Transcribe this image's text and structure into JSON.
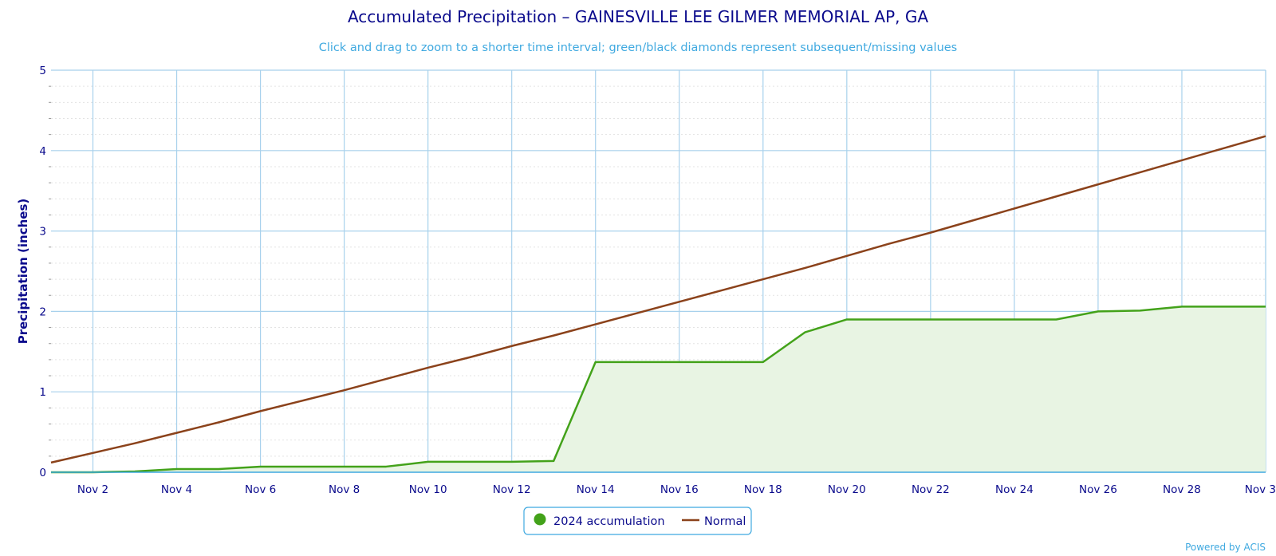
{
  "chart_data": {
    "type": "line",
    "title": "Accumulated Precipitation – GAINESVILLE LEE GILMER MEMORIAL AP, GA",
    "subtitle": "Click and drag to zoom to a shorter time interval; green/black diamonds represent subsequent/missing values",
    "ylabel": "Precipitation (inches)",
    "xlabel": "",
    "ylim": [
      0,
      5
    ],
    "xlim": [
      1,
      30
    ],
    "y_ticks": [
      "0",
      "1",
      "2",
      "3",
      "4",
      "5"
    ],
    "x_ticks": [
      {
        "day": 2,
        "label": "Nov 2"
      },
      {
        "day": 4,
        "label": "Nov 4"
      },
      {
        "day": 6,
        "label": "Nov 6"
      },
      {
        "day": 8,
        "label": "Nov 8"
      },
      {
        "day": 10,
        "label": "Nov 10"
      },
      {
        "day": 12,
        "label": "Nov 12"
      },
      {
        "day": 14,
        "label": "Nov 14"
      },
      {
        "day": 16,
        "label": "Nov 16"
      },
      {
        "day": 18,
        "label": "Nov 18"
      },
      {
        "day": 20,
        "label": "Nov 20"
      },
      {
        "day": 22,
        "label": "Nov 22"
      },
      {
        "day": 24,
        "label": "Nov 24"
      },
      {
        "day": 26,
        "label": "Nov 26"
      },
      {
        "day": 28,
        "label": "Nov 28"
      },
      {
        "day": 30,
        "label": "Nov 3"
      }
    ],
    "grid": true,
    "legend_position": "bottom-center",
    "series": [
      {
        "name": "2024 accumulation",
        "color": "#43a21a",
        "fill": "#e8f4e3",
        "style": "area",
        "x": [
          1,
          2,
          3,
          4,
          5,
          6,
          7,
          8,
          9,
          10,
          11,
          12,
          13,
          14,
          15,
          16,
          17,
          18,
          19,
          20,
          21,
          22,
          23,
          24,
          25,
          26,
          27,
          28,
          29,
          30
        ],
        "y": [
          0.0,
          0.0,
          0.01,
          0.04,
          0.04,
          0.07,
          0.07,
          0.07,
          0.07,
          0.13,
          0.13,
          0.13,
          0.14,
          1.37,
          1.37,
          1.37,
          1.37,
          1.37,
          1.74,
          1.9,
          1.9,
          1.9,
          1.9,
          1.9,
          1.9,
          2.0,
          2.01,
          2.06,
          2.06,
          2.06
        ]
      },
      {
        "name": "Normal",
        "color": "#8b421b",
        "style": "line",
        "x": [
          1,
          2,
          3,
          4,
          5,
          6,
          7,
          8,
          9,
          10,
          11,
          12,
          13,
          14,
          15,
          16,
          17,
          18,
          19,
          20,
          21,
          22,
          23,
          24,
          25,
          26,
          27,
          28,
          29,
          30
        ],
        "y": [
          0.12,
          0.24,
          0.36,
          0.49,
          0.62,
          0.76,
          0.89,
          1.02,
          1.16,
          1.3,
          1.43,
          1.57,
          1.7,
          1.84,
          1.98,
          2.12,
          2.26,
          2.4,
          2.54,
          2.69,
          2.84,
          2.98,
          3.13,
          3.28,
          3.43,
          3.58,
          3.73,
          3.88,
          4.03,
          4.18
        ]
      }
    ]
  },
  "credit": "Powered by ACIS"
}
